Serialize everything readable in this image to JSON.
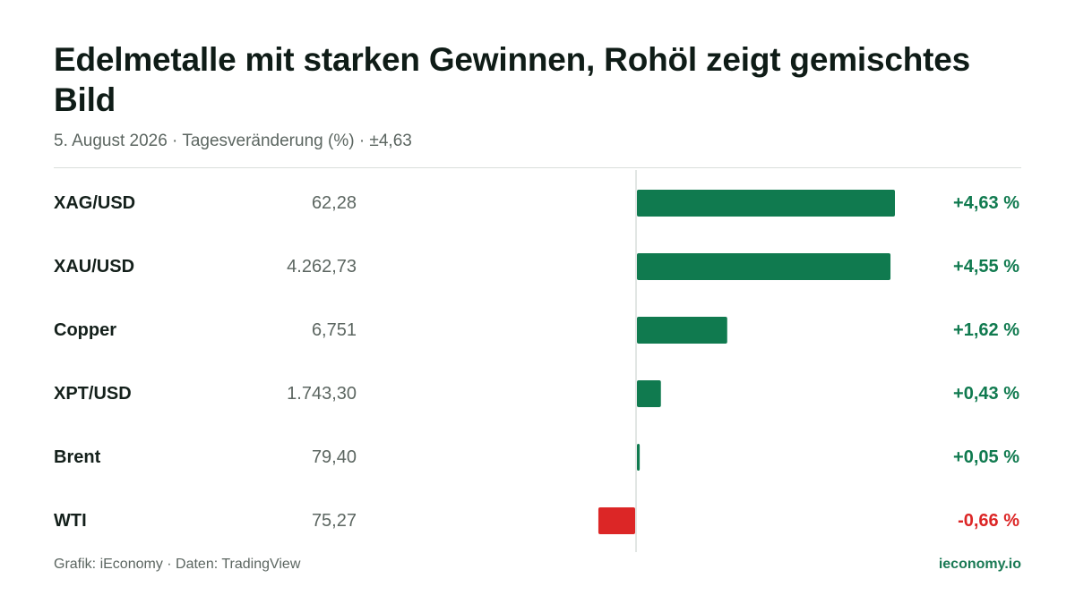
{
  "title": "Edelmetalle mit starken Gewinnen, Rohöl zeigt gemischtes Bild",
  "subtitle": "5. August 2026 · Tagesveränderung (%) · ±4,63",
  "footer": {
    "source": "Grafik: iEconomy · Daten: TradingView",
    "brand": "ieconomy.io"
  },
  "colors": {
    "positive": "#107a4f",
    "negative": "#dc2626",
    "positive_text": "#107a4f",
    "negative_text": "#dc2626"
  },
  "chart_data": {
    "type": "bar",
    "orientation": "horizontal",
    "title": "Edelmetalle mit starken Gewinnen, Rohöl zeigt gemischtes Bild",
    "subtitle": "5. August 2026 · Tagesveränderung (%) · ±4,63",
    "xlim": [
      -4.63,
      4.63
    ],
    "grid": false,
    "rows": [
      {
        "name": "XAG/USD",
        "price": "62,28",
        "change": 4.63,
        "change_label": "+4,63 %"
      },
      {
        "name": "XAU/USD",
        "price": "4.262,73",
        "change": 4.55,
        "change_label": "+4,55 %"
      },
      {
        "name": "Copper",
        "price": "6,751",
        "change": 1.62,
        "change_label": "+1,62 %"
      },
      {
        "name": "XPT/USD",
        "price": "1.743,30",
        "change": 0.43,
        "change_label": "+0,43 %"
      },
      {
        "name": "Brent",
        "price": "79,40",
        "change": 0.05,
        "change_label": "+0,05 %"
      },
      {
        "name": "WTI",
        "price": "75,27",
        "change": -0.66,
        "change_label": "-0,66 %"
      }
    ]
  }
}
